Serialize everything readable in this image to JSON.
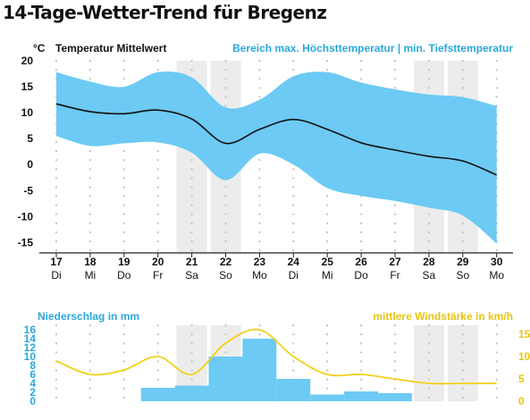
{
  "title": "14-Tage-Wetter-Trend für Bregenz",
  "colors": {
    "accent": "#2aa8dc",
    "band": "#6ccaf4",
    "bar": "#6ccaf4",
    "wind": "#f2d01a",
    "shade": "#ececec",
    "line": "#111111"
  },
  "chart_data": [
    {
      "type": "area",
      "unit_label": "°C",
      "legend_line": "Temperatur Mittelwert",
      "legend_band": "Bereich max. Höchsttemperatur | min. Tiefsttemperatur",
      "ylim": [
        -17,
        20
      ],
      "yticks": [
        20,
        15,
        10,
        5,
        0,
        -5,
        -10,
        -15
      ],
      "dates": [
        "17",
        "18",
        "19",
        "20",
        "21",
        "22",
        "23",
        "24",
        "25",
        "26",
        "27",
        "28",
        "29",
        "30"
      ],
      "weekdays": [
        "Di",
        "Mi",
        "Do",
        "Fr",
        "Sa",
        "So",
        "Mo",
        "Di",
        "Mi",
        "Do",
        "Fr",
        "Sa",
        "So",
        "Mo"
      ],
      "series": [
        {
          "name": "Temperatur Mittelwert",
          "values": [
            11.7,
            10.2,
            9.8,
            10.5,
            8.8,
            4.1,
            6.8,
            8.7,
            6.8,
            4.2,
            2.8,
            1.6,
            0.7,
            -2.0
          ]
        },
        {
          "name": "max. Höchsttemperatur",
          "values": [
            17.8,
            16.0,
            15.0,
            17.8,
            16.8,
            11.0,
            12.5,
            17.0,
            17.8,
            15.8,
            14.5,
            13.5,
            13.0,
            11.3
          ]
        },
        {
          "name": "min. Tiefsttemperatur",
          "values": [
            5.5,
            3.6,
            4.1,
            4.3,
            2.3,
            -3.0,
            2.1,
            0.0,
            -4.5,
            -6.0,
            -7.0,
            -8.3,
            -9.8,
            -15.2
          ]
        }
      ]
    },
    {
      "type": "bar",
      "legend_left": "Niederschlag in mm",
      "legend_right": "mittlere Windstärke in km/h",
      "ylim_left": [
        0,
        16
      ],
      "yticks_left": [
        16,
        14,
        12,
        10,
        8,
        6,
        4,
        2,
        0
      ],
      "ylim_right": [
        0,
        16
      ],
      "yticks_right": [
        15,
        10,
        5,
        0
      ],
      "series": [
        {
          "name": "Niederschlag in mm",
          "values": [
            0,
            0,
            0,
            3,
            3.5,
            10,
            14,
            5,
            1.5,
            2.2,
            1.8,
            0,
            0,
            0
          ]
        },
        {
          "name": "mittlere Windstärke in km/h",
          "values": [
            9,
            6,
            7,
            10,
            6,
            13,
            16,
            10,
            6,
            6,
            5,
            4,
            4,
            4
          ]
        }
      ]
    }
  ]
}
